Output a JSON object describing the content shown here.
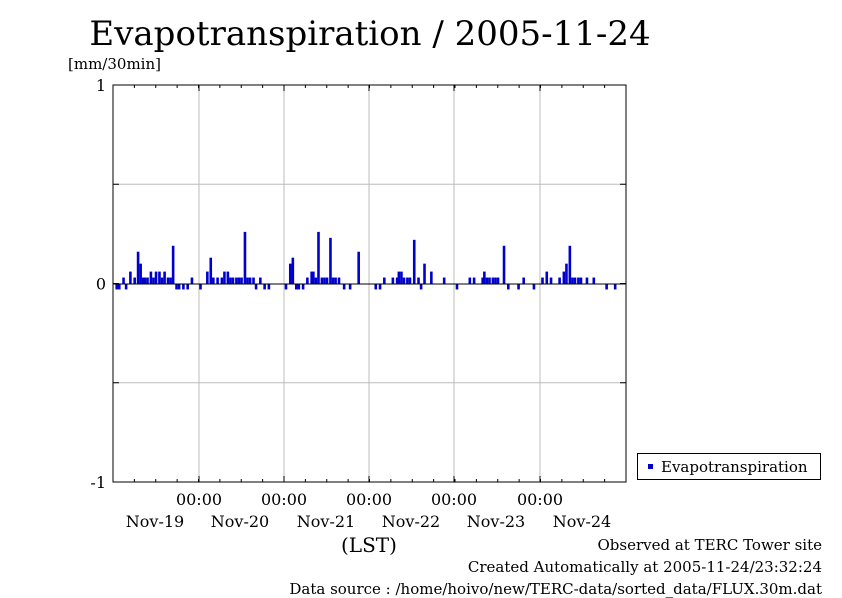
{
  "chart_data": {
    "type": "bar",
    "title": "Evapotranspiration / 2005-11-24",
    "ylabel": "[mm/30min]",
    "xlabel": "(LST)",
    "ylim": [
      -1,
      1
    ],
    "yticks": [
      "1",
      "0",
      "-1"
    ],
    "time_ticks": [
      "00:00",
      "00:00",
      "00:00",
      "00:00",
      "00:00"
    ],
    "date_ticks": [
      "Nov-19",
      "Nov-20",
      "Nov-21",
      "Nov-22",
      "Nov-23",
      "Nov-24"
    ],
    "grid": true,
    "legend_position": "bottom-right",
    "series": [
      {
        "name": "Evapotranspiration",
        "color": "#0000cc",
        "x_day": [
          0.02,
          0.05,
          0.1,
          0.13,
          0.18,
          0.23,
          0.27,
          0.3,
          0.33,
          0.35,
          0.38,
          0.42,
          0.45,
          0.48,
          0.52,
          0.55,
          0.58,
          0.62,
          0.65,
          0.68,
          0.72,
          0.75,
          0.8,
          0.85,
          0.9,
          1.0,
          1.08,
          1.12,
          1.15,
          1.2,
          1.25,
          1.28,
          1.32,
          1.35,
          1.38,
          1.42,
          1.45,
          1.48,
          1.52,
          1.55,
          1.58,
          1.62,
          1.65,
          1.7,
          1.75,
          1.8,
          2.0,
          2.05,
          2.08,
          2.12,
          2.15,
          2.2,
          2.25,
          2.3,
          2.32,
          2.35,
          2.38,
          2.42,
          2.45,
          2.48,
          2.52,
          2.55,
          2.58,
          2.62,
          2.68,
          2.75,
          2.85,
          3.05,
          3.1,
          3.15,
          3.25,
          3.3,
          3.32,
          3.35,
          3.38,
          3.42,
          3.45,
          3.5,
          3.55,
          3.58,
          3.62,
          3.7,
          3.85,
          4.0,
          4.15,
          4.2,
          4.3,
          4.32,
          4.35,
          4.38,
          4.42,
          4.45,
          4.48,
          4.55,
          4.6,
          4.72,
          4.78,
          4.9,
          5.0,
          5.05,
          5.1,
          5.2,
          5.25,
          5.28,
          5.32,
          5.35,
          5.38,
          5.42,
          5.45,
          5.52,
          5.6,
          5.75,
          5.85
        ],
        "values": [
          -0.03,
          -0.03,
          0.03,
          -0.03,
          0.06,
          0.03,
          0.16,
          0.1,
          0.03,
          0.03,
          0.03,
          0.06,
          0.03,
          0.06,
          0.06,
          0.03,
          0.06,
          0.03,
          0.03,
          0.19,
          -0.03,
          -0.03,
          -0.03,
          -0.03,
          0.03,
          -0.03,
          0.06,
          0.13,
          0.03,
          0.03,
          0.03,
          0.06,
          0.06,
          0.03,
          0.03,
          0.03,
          0.03,
          0.03,
          0.26,
          0.03,
          0.03,
          0.03,
          -0.03,
          0.03,
          -0.03,
          -0.03,
          -0.03,
          0.1,
          0.13,
          -0.03,
          -0.03,
          -0.03,
          0.03,
          0.06,
          0.06,
          0.03,
          0.26,
          0.03,
          0.03,
          0.03,
          0.23,
          0.03,
          0.03,
          0.03,
          -0.03,
          -0.03,
          0.16,
          -0.03,
          -0.03,
          0.03,
          0.03,
          0.03,
          0.06,
          0.06,
          0.03,
          0.03,
          0.03,
          0.22,
          0.03,
          -0.03,
          0.1,
          0.06,
          0.03,
          -0.03,
          0.03,
          0.03,
          0.03,
          0.06,
          0.03,
          0.03,
          0.03,
          0.03,
          0.03,
          0.19,
          -0.03,
          -0.03,
          0.03,
          -0.03,
          0.03,
          0.06,
          0.03,
          0.03,
          0.06,
          0.1,
          0.19,
          0.03,
          0.03,
          0.03,
          0.03,
          0.03,
          0.03,
          -0.03,
          -0.03
        ]
      }
    ]
  },
  "legend": {
    "label": "Evapotranspiration"
  },
  "footer": {
    "observed": "Observed at TERC Tower site",
    "created": "Created Automatically at 2005-11-24/23:32:24",
    "source": "Data source : /home/hoivo/new/TERC-data/sorted_data/FLUX.30m.dat"
  }
}
